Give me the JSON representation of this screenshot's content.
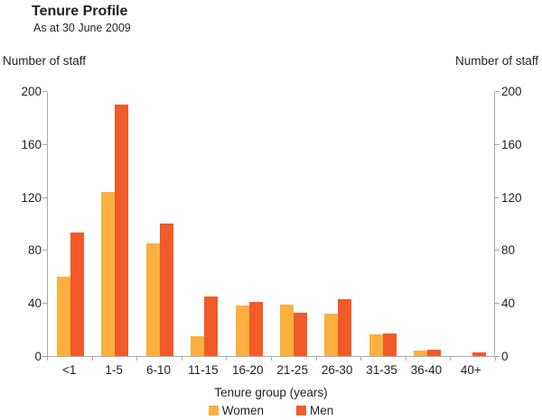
{
  "colors": {
    "women": "#FBB040",
    "men": "#F15A29",
    "axis": "#A7A9AC",
    "text": "#231F20"
  },
  "chart_data": {
    "type": "bar",
    "title": "Tenure Profile",
    "subtitle": "As at 30 June 2009",
    "categories": [
      "<1",
      "1-5",
      "6-10",
      "11-15",
      "16-20",
      "21-25",
      "26-30",
      "31-35",
      "36-40",
      "40+"
    ],
    "series": [
      {
        "name": "Women",
        "color": "#FBB040",
        "values": [
          60,
          124,
          85,
          15,
          38,
          39,
          32,
          16,
          4,
          0
        ]
      },
      {
        "name": "Men",
        "color": "#F15A29",
        "values": [
          93,
          190,
          100,
          45,
          41,
          33,
          43,
          17,
          5,
          3
        ]
      }
    ],
    "xlabel": "Tenure group (years)",
    "ylabel_left": "Number of staff",
    "ylabel_right": "Number of staff",
    "ylim": [
      0,
      200
    ],
    "yticks": [
      0,
      40,
      80,
      120,
      160,
      200
    ],
    "grid": false,
    "legend_position": "bottom"
  }
}
